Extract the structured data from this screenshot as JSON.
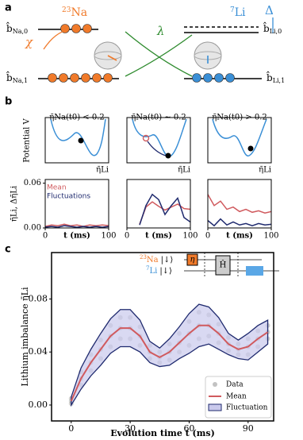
{
  "panels": [
    "a",
    "b",
    "c"
  ],
  "diagram": {
    "na": {
      "mass": "23",
      "element": "Na"
    },
    "li": {
      "mass": "7",
      "element": "Li"
    },
    "chi": "χ",
    "lambda": "λ",
    "delta": "Δ",
    "states": [
      {
        "op": "b̂",
        "sub": "Na,0"
      },
      {
        "op": "b̂",
        "sub": "Na,1"
      },
      {
        "op": "b̂",
        "sub": "Li,0"
      },
      {
        "op": "b̂",
        "sub": "Li,1"
      }
    ]
  },
  "potential": {
    "ylabel": "Potential V",
    "xlabel": "η̄Li"
  },
  "circuit": {
    "na": {
      "mass": "23",
      "element": "Na",
      "state": "|↓⟩"
    },
    "li": {
      "mass": "7",
      "element": "Li",
      "state": "|↓⟩"
    },
    "gate1": "η",
    "gate2": "Ĥ"
  },
  "chart_data": [
    {
      "type": "line",
      "title": "η̄Na(t0) < 0.2",
      "ylabel": "η̄Li, Δη̄Li",
      "xlabel": "t (ms)",
      "x": [
        0,
        10,
        20,
        30,
        40,
        50,
        60,
        70,
        80,
        90,
        100
      ],
      "xlim": [
        0,
        100
      ],
      "xticks": [
        0,
        100
      ],
      "ylim": [
        0,
        0.065
      ],
      "yticks": [
        {
          "value": 0,
          "label": "0.00"
        },
        {
          "value": 0.06,
          "label": "0.06"
        }
      ],
      "legend": "upper left",
      "series": [
        {
          "name": "Mean",
          "color": "#d05a5e",
          "values": [
            0.002,
            0.004,
            0.003,
            0.005,
            0.003,
            0.004,
            0.002,
            0.004,
            0.003,
            0.004,
            0.003
          ]
        },
        {
          "name": "Fluctuations",
          "color": "#1f2a6e",
          "values": [
            0.001,
            0.002,
            0.001,
            0.003,
            0.002,
            0.001,
            0.002,
            0.001,
            0.002,
            0.001,
            0.002
          ]
        }
      ]
    },
    {
      "type": "line",
      "title": "η̄Na(t0) ∼ 0.2",
      "xlabel": "t (ms)",
      "x": [
        0,
        10,
        20,
        30,
        40,
        50,
        60,
        70,
        80,
        90,
        100
      ],
      "xlim": [
        0,
        100
      ],
      "xticks": [
        0,
        100
      ],
      "ylim": [
        0,
        0.065
      ],
      "series": [
        {
          "name": "Mean",
          "color": "#d05a5e",
          "values": [
            null,
            null,
            0.005,
            0.028,
            0.035,
            0.029,
            0.024,
            0.028,
            0.032,
            0.026,
            0.025
          ]
        },
        {
          "name": "Fluctuations",
          "color": "#1f2a6e",
          "values": [
            null,
            null,
            0.004,
            0.03,
            0.045,
            0.038,
            0.018,
            0.03,
            0.04,
            0.014,
            0.008
          ]
        }
      ]
    },
    {
      "type": "line",
      "title": "η̄Na(t0) > 0.2",
      "xlabel": "t (ms)",
      "x": [
        0,
        10,
        20,
        30,
        40,
        50,
        60,
        70,
        80,
        90,
        100
      ],
      "xlim": [
        0,
        100
      ],
      "xticks": [
        0,
        100
      ],
      "ylim": [
        0,
        0.065
      ],
      "series": [
        {
          "name": "Mean",
          "color": "#d05a5e",
          "values": [
            0.045,
            0.03,
            0.036,
            0.025,
            0.028,
            0.022,
            0.025,
            0.021,
            0.023,
            0.02,
            0.022
          ]
        },
        {
          "name": "Fluctuations",
          "color": "#1f2a6e",
          "values": [
            0.01,
            0.003,
            0.012,
            0.004,
            0.008,
            0.004,
            0.006,
            0.003,
            0.006,
            0.004,
            0.005
          ]
        }
      ]
    },
    {
      "type": "line",
      "xlabel": "Evolution time t (ms)",
      "ylabel": "Lithium imbalance η̄Li",
      "legend": "lower right",
      "xlim": [
        -10,
        103
      ],
      "xticks": [
        0,
        30,
        60,
        90
      ],
      "ylim": [
        -0.012,
        0.115
      ],
      "yticks": [
        {
          "value": 0,
          "label": "0.00"
        },
        {
          "value": 0.04,
          "label": "0.04"
        },
        {
          "value": 0.08,
          "label": "0.08"
        }
      ],
      "x": [
        0,
        5,
        10,
        15,
        20,
        25,
        30,
        35,
        40,
        45,
        50,
        55,
        60,
        65,
        70,
        75,
        80,
        85,
        90,
        95,
        100
      ],
      "scatter": {
        "name": "Data",
        "color": "#9a9a9a",
        "x": [
          0,
          0,
          0,
          5,
          5,
          5,
          10,
          10,
          10,
          15,
          15,
          15,
          20,
          20,
          20,
          25,
          25,
          25,
          30,
          30,
          30,
          35,
          35,
          35,
          40,
          40,
          40,
          45,
          45,
          45,
          50,
          50,
          50,
          55,
          55,
          55,
          60,
          60,
          60,
          65,
          65,
          65,
          70,
          70,
          70,
          75,
          75,
          75,
          80,
          80,
          80,
          85,
          85,
          85,
          90,
          90,
          90,
          95,
          95,
          95,
          100,
          100,
          100
        ],
        "values": [
          0.001,
          0.003,
          0.005,
          0.015,
          0.02,
          0.025,
          0.026,
          0.032,
          0.038,
          0.035,
          0.042,
          0.049,
          0.044,
          0.052,
          0.06,
          0.05,
          0.058,
          0.066,
          0.05,
          0.058,
          0.066,
          0.045,
          0.052,
          0.059,
          0.035,
          0.04,
          0.045,
          0.032,
          0.036,
          0.04,
          0.034,
          0.04,
          0.046,
          0.04,
          0.047,
          0.054,
          0.045,
          0.054,
          0.063,
          0.05,
          0.06,
          0.07,
          0.052,
          0.06,
          0.068,
          0.047,
          0.054,
          0.061,
          0.041,
          0.046,
          0.051,
          0.038,
          0.042,
          0.046,
          0.038,
          0.044,
          0.05,
          0.044,
          0.05,
          0.056,
          0.05,
          0.055,
          0.06
        ]
      },
      "series": [
        {
          "name": "Mean",
          "color": "#d05a5e",
          "values": [
            0.003,
            0.02,
            0.032,
            0.042,
            0.052,
            0.058,
            0.058,
            0.052,
            0.04,
            0.036,
            0.04,
            0.047,
            0.054,
            0.06,
            0.06,
            0.054,
            0.046,
            0.042,
            0.044,
            0.05,
            0.055
          ]
        },
        {
          "name": "Fluctuation",
          "color": "#1f2a6e",
          "fill": "#c9c9ec",
          "values": [
            0.003,
            0.008,
            0.01,
            0.012,
            0.013,
            0.014,
            0.014,
            0.012,
            0.008,
            0.007,
            0.01,
            0.012,
            0.015,
            0.016,
            0.014,
            0.012,
            0.008,
            0.007,
            0.01,
            0.01,
            0.009
          ]
        }
      ]
    }
  ]
}
